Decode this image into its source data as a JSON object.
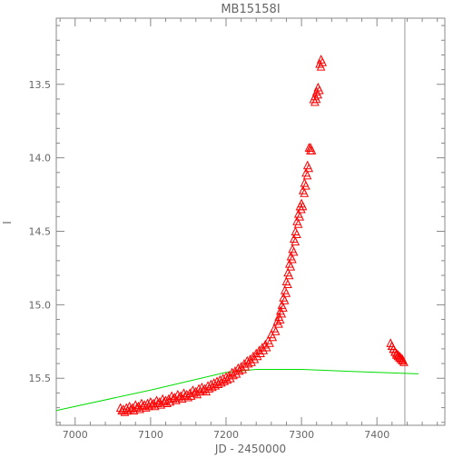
{
  "chart_data": {
    "type": "scatter",
    "title": "MB15158I",
    "xlabel": "JD - 2450000",
    "ylabel": "I",
    "xlim": [
      6975,
      7490
    ],
    "ylim": [
      15.82,
      13.05
    ],
    "y_inverted": true,
    "x_ticks": [
      7000,
      7100,
      7200,
      7300,
      7400
    ],
    "x_tick_labels": [
      "7000",
      "7100",
      "7200",
      "7300",
      "7400"
    ],
    "y_ticks": [
      13.5,
      14.0,
      14.5,
      15.0,
      15.5
    ],
    "y_tick_labels": [
      "13.5",
      "14.0",
      "14.5",
      "15.0",
      "15.5"
    ],
    "grid": false,
    "series": [
      {
        "marker": "open-triangle",
        "color": "#ff0000",
        "x": [
          7060,
          7064,
          7068,
          7072,
          7076,
          7080,
          7084,
          7088,
          7092,
          7096,
          7100,
          7104,
          7108,
          7112,
          7116,
          7120,
          7124,
          7128,
          7132,
          7136,
          7140,
          7144,
          7148,
          7152,
          7156,
          7160,
          7164,
          7168,
          7172,
          7176,
          7180,
          7184,
          7188,
          7192,
          7196,
          7200,
          7204,
          7208,
          7212,
          7216,
          7220,
          7224,
          7228,
          7232,
          7236,
          7240,
          7244,
          7248,
          7252,
          7256,
          7260,
          7264,
          7268,
          7270,
          7272,
          7274,
          7276,
          7278,
          7280,
          7282,
          7284,
          7286,
          7288,
          7290,
          7292,
          7294,
          7296,
          7298,
          7300,
          7302,
          7304,
          7306,
          7308,
          7310,
          7312,
          7316,
          7318,
          7320,
          7322,
          7324,
          7326,
          7418,
          7420,
          7422,
          7424,
          7426,
          7428,
          7430,
          7432,
          7434
        ],
        "y": [
          15.7,
          15.71,
          15.7,
          15.69,
          15.7,
          15.68,
          15.69,
          15.67,
          15.68,
          15.67,
          15.66,
          15.67,
          15.65,
          15.66,
          15.64,
          15.65,
          15.64,
          15.62,
          15.63,
          15.61,
          15.62,
          15.6,
          15.61,
          15.6,
          15.58,
          15.59,
          15.57,
          15.56,
          15.57,
          15.55,
          15.54,
          15.53,
          15.52,
          15.51,
          15.5,
          15.49,
          15.48,
          15.46,
          15.45,
          15.43,
          15.42,
          15.4,
          15.38,
          15.37,
          15.35,
          15.33,
          15.31,
          15.29,
          15.27,
          15.24,
          15.2,
          15.16,
          15.11,
          15.08,
          15.04,
          15.0,
          14.95,
          14.9,
          14.84,
          14.78,
          14.72,
          14.67,
          14.62,
          14.55,
          14.5,
          14.43,
          14.38,
          14.33,
          14.31,
          14.22,
          14.17,
          14.1,
          14.05,
          13.93,
          13.93,
          13.6,
          13.58,
          13.55,
          13.52,
          13.36,
          13.33,
          15.26,
          15.28,
          15.3,
          15.32,
          15.33,
          15.34,
          15.35,
          15.36,
          15.37
        ]
      },
      {
        "marker": "line",
        "color": "#00dd00",
        "x": [
          6975,
          7100,
          7200,
          7240,
          7300,
          7400,
          7455
        ],
        "y": [
          15.72,
          15.58,
          15.46,
          15.44,
          15.44,
          15.46,
          15.47
        ]
      }
    ],
    "reference_line": {
      "orientation": "vertical",
      "x": 7437,
      "color": "#999999"
    }
  }
}
